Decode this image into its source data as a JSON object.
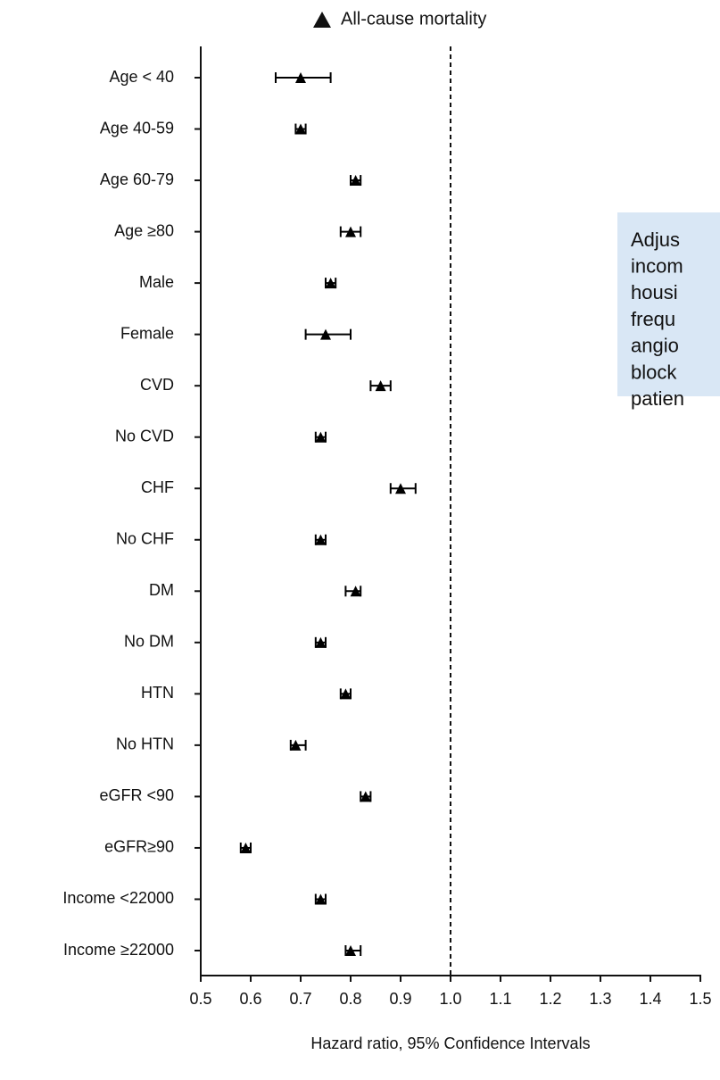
{
  "chart_data": {
    "type": "forest",
    "series_name": "All-cause mortality",
    "x_label": "Hazard ratio, 95% Confidence Intervals",
    "categories": [
      "Age < 40",
      "Age 40-59",
      "Age 60-79",
      "Age ≥80",
      "Male",
      "Female",
      "CVD",
      "No CVD",
      "CHF",
      "No CHF",
      "DM",
      "No DM",
      "HTN",
      "No HTN",
      "eGFR <90",
      "eGFR≥90",
      "Income <22000",
      "Income ≥22000"
    ],
    "values": [
      0.7,
      0.7,
      0.81,
      0.8,
      0.76,
      0.75,
      0.86,
      0.74,
      0.9,
      0.74,
      0.81,
      0.74,
      0.79,
      0.69,
      0.83,
      0.59,
      0.74,
      0.8
    ],
    "lower": [
      0.65,
      0.69,
      0.8,
      0.78,
      0.75,
      0.71,
      0.84,
      0.73,
      0.88,
      0.73,
      0.79,
      0.73,
      0.78,
      0.68,
      0.82,
      0.58,
      0.73,
      0.79
    ],
    "upper": [
      0.76,
      0.71,
      0.82,
      0.82,
      0.77,
      0.8,
      0.88,
      0.75,
      0.93,
      0.75,
      0.82,
      0.75,
      0.8,
      0.71,
      0.84,
      0.6,
      0.75,
      0.82
    ],
    "color": "#000000",
    "xlim": [
      0.5,
      1.5
    ],
    "xticks": [
      0.5,
      0.6,
      0.7,
      0.8,
      0.9,
      {
        "value": 1,
        "label": "1.0"
      },
      1.1,
      1.2,
      1.3,
      1.4,
      1.5
    ],
    "reference_line": 1,
    "annotation_lines": [
      "Adjus",
      "incom",
      "housi",
      "frequ",
      "angio",
      "block",
      "patien"
    ]
  }
}
